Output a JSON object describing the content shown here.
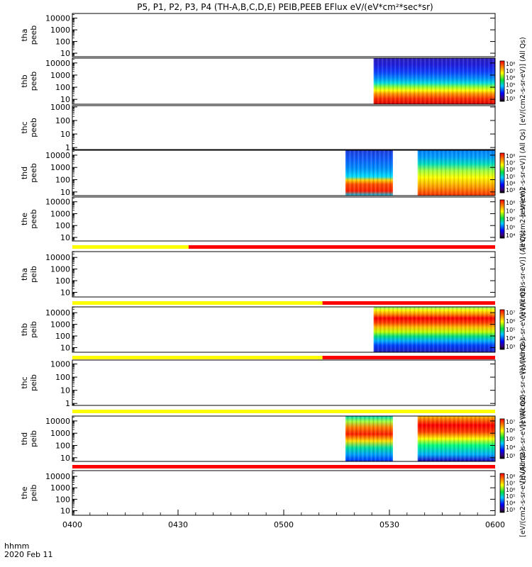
{
  "colors": {
    "panel_border": "#000000",
    "yellow_bar": "#ffff00",
    "red_bar": "#ff0000",
    "missing_tick": "#000000"
  },
  "chart_data": {
    "type": "heatmap",
    "title": "P5, P1, P2, P3, P4 (TH-A,B,C,D,E) PEIB,PEEB EFlux eV/(eV*cm²*sec*sr)",
    "x_axis": {
      "label_line1": "hhmm",
      "label_line2": "2020 Feb 11",
      "range_minutes": [
        0,
        120
      ],
      "ticks": [
        {
          "label": "0400",
          "minute": 0
        },
        {
          "label": "0430",
          "minute": 30
        },
        {
          "label": "0500",
          "minute": 60
        },
        {
          "label": "0530",
          "minute": 90
        },
        {
          "label": "0600",
          "minute": 120
        }
      ]
    },
    "colorbar_labels": {
      "dual_units": "[eV/(cm2-s-sr-eV)]   (All Qs)",
      "peeb_units": "[eV/(cm2-s-sr-eV)]",
      "all_qs": "(All Qs)"
    },
    "panels": [
      {
        "name": "tha-peeb",
        "label": [
          "tha",
          "peeb"
        ],
        "yticks": [
          "10000",
          "1000",
          "100",
          "10"
        ],
        "ylog": [
          0.7,
          4.4
        ],
        "blocks": [],
        "colorbar": false,
        "bar_after": null
      },
      {
        "name": "thb-peeb",
        "label": [
          "thb",
          "peeb"
        ],
        "yticks": [
          "10000",
          "1000",
          "100",
          "10"
        ],
        "ylog": [
          0.6,
          4.4
        ],
        "blocks": [
          {
            "t0": 85.5,
            "t1": 120,
            "type": "electron"
          }
        ],
        "colorbar": true,
        "cb_ticks": [
          "10⁸",
          "10⁷",
          "10⁶",
          "10⁵",
          "10⁴",
          "10³"
        ],
        "cb_units": "dual",
        "bar_after": null
      },
      {
        "name": "thc-peeb",
        "label": [
          "thc",
          "peeb"
        ],
        "yticks": [
          "1000",
          "100",
          "10",
          "1"
        ],
        "ylog": [
          -0.15,
          3.1
        ],
        "blocks": [],
        "colorbar": false,
        "bar_after": null
      },
      {
        "name": "thd-peeb",
        "label": [
          "thd",
          "peeb"
        ],
        "yticks": [
          "10000",
          "1000",
          "100",
          "10"
        ],
        "ylog": [
          0.7,
          4.4
        ],
        "blocks": [
          {
            "t0": 77.5,
            "t1": 91,
            "type": "electron-d"
          },
          {
            "t0": 98,
            "t1": 120,
            "type": "electron-d2"
          }
        ],
        "colorbar": true,
        "cb_ticks": [
          "10⁸",
          "10⁷",
          "10⁶",
          "10⁵",
          "10⁴",
          "10³"
        ],
        "cb_units": "dual",
        "bar_after": null
      },
      {
        "name": "the-peeb",
        "label": [
          "the",
          "peeb"
        ],
        "yticks": [
          "10000",
          "1000",
          "100",
          "10"
        ],
        "ylog": [
          0.7,
          4.4
        ],
        "blocks": [],
        "colorbar": true,
        "cb_ticks": [
          "10⁸",
          "10⁷",
          "10⁶",
          "10⁵",
          "10⁴"
        ],
        "cb_units": "peeb",
        "bar_after": {
          "yellow_to": 33,
          "red_from": 33
        }
      },
      {
        "name": "tha-peib",
        "label": [
          "tha",
          "peib"
        ],
        "yticks": [
          "10000",
          "1000",
          "100",
          "10"
        ],
        "ylog": [
          0.6,
          4.5
        ],
        "blocks": [],
        "colorbar": false,
        "cb_units": "dual",
        "bar_after": {
          "yellow_to": 71,
          "red_from": 71
        }
      },
      {
        "name": "thb-peib",
        "label": [
          "thb",
          "peib"
        ],
        "yticks": [
          "10000",
          "1000",
          "100",
          "10"
        ],
        "ylog": [
          0.6,
          4.5
        ],
        "blocks": [
          {
            "t0": 85.5,
            "t1": 120,
            "type": "ion"
          }
        ],
        "colorbar": true,
        "cb_ticks": [
          "10⁷",
          "10⁶",
          "10⁵",
          "10⁴",
          "10³"
        ],
        "cb_units": "dual",
        "bar_after": {
          "yellow_to": 71,
          "red_from": 71
        }
      },
      {
        "name": "thc-peib",
        "label": [
          "thc",
          "peib"
        ],
        "yticks": [
          "1000",
          "100",
          "10",
          "1"
        ],
        "ylog": [
          -0.15,
          3.3
        ],
        "blocks": [],
        "colorbar": false,
        "cb_units": "dual",
        "bar_after": {
          "yellow_to": 120,
          "red_from": 120
        }
      },
      {
        "name": "thd-peib",
        "label": [
          "thd",
          "peib"
        ],
        "yticks": [
          "10000",
          "1000",
          "100",
          "10"
        ],
        "ylog": [
          0.7,
          4.4
        ],
        "blocks": [
          {
            "t0": 77.5,
            "t1": 91,
            "type": "ion-d"
          },
          {
            "t0": 98,
            "t1": 120,
            "type": "ion-d2"
          }
        ],
        "colorbar": true,
        "cb_ticks": [
          "10⁷",
          "10⁶",
          "10⁵",
          "10⁴",
          "10³"
        ],
        "cb_units": "dual",
        "bar_after": {
          "yellow_to": 0,
          "red_from": 0
        }
      },
      {
        "name": "the-peib",
        "label": [
          "the",
          "peib"
        ],
        "yticks": [
          "10000",
          "1000",
          "100",
          "10"
        ],
        "ylog": [
          0.6,
          4.5
        ],
        "blocks": [],
        "colorbar": true,
        "cb_ticks": [
          "10⁸",
          "10⁷",
          "10⁶",
          "10⁵",
          "10⁴",
          "10³"
        ],
        "cb_units": "dual",
        "bar_after": null
      }
    ]
  }
}
